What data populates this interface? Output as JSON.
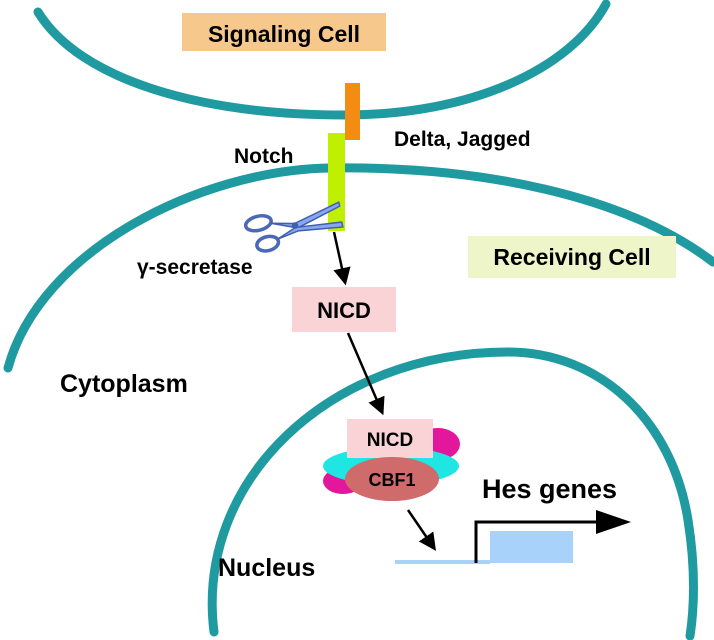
{
  "labels": {
    "signaling_cell": "Signaling Cell",
    "receiving_cell": "Receiving Cell",
    "delta_jagged": "Delta, Jagged",
    "notch": "Notch",
    "gamma_secretase": "γ-secretase",
    "nicd_cytoplasm": "NICD",
    "cytoplasm": "Cytoplasm",
    "nicd_complex": "NICD",
    "cbf1": "CBF1",
    "hes_genes": "Hes genes",
    "nucleus": "Nucleus"
  },
  "colors": {
    "membrane": "#1f9aa0",
    "signaling_box": "#f7c88c",
    "receiving_box": "#eef5c8",
    "nicd_box": "#f9d3d6",
    "delta_ligand": "#f28c12",
    "notch_receptor": "#bff000",
    "scissors": "#8aa6ee",
    "magenta": "#e2179b",
    "cyan": "#1fe6e2",
    "cbf1": "#cf6b6b",
    "gene_box": "#a9d2fb",
    "dna_line": "#a9d2fb"
  },
  "icons": {
    "scissors": "scissors-icon"
  }
}
